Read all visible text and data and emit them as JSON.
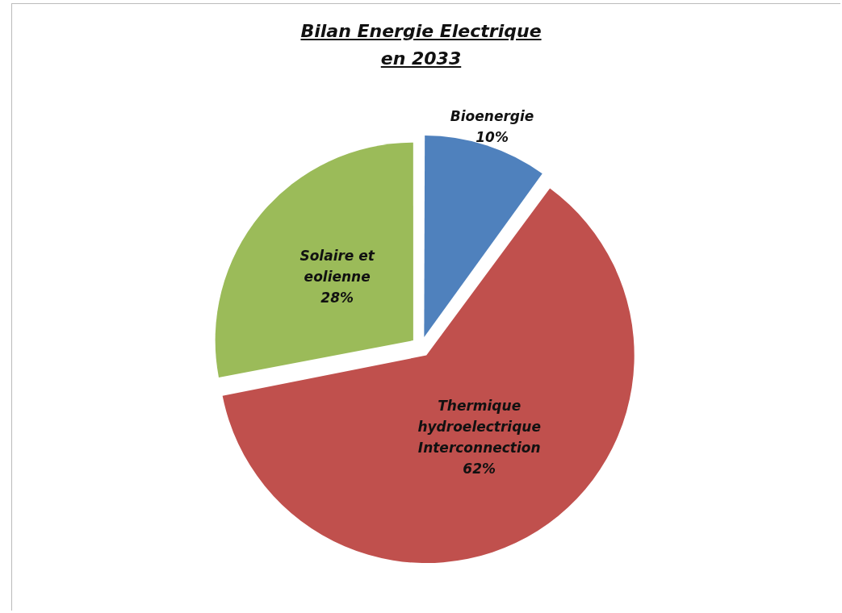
{
  "chart_data": {
    "type": "pie",
    "title": "Bilan Energie  Electrique en 2033",
    "categories": [
      "Bioenergie",
      "Thermique hydroelectrique Interconnection",
      "Solaire et eolienne"
    ],
    "values": [
      10,
      62,
      28
    ],
    "colors": [
      "#4f81bd",
      "#c0504d",
      "#9bbb59"
    ],
    "value_labels": [
      "10%",
      "62%",
      "28%"
    ],
    "legend": false
  }
}
